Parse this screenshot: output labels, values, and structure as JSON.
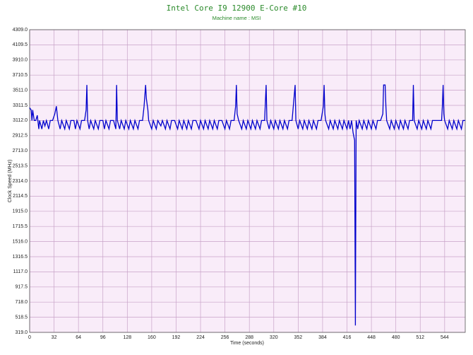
{
  "chart_data": {
    "type": "line",
    "title": "Intel Core I9 12900 E-Core #10",
    "subtitle": "Machine name : MSI",
    "x_label": "Time (seconds)",
    "y_label": "Clock Speed (MHz)",
    "grid": true,
    "xlim": [
      0,
      571
    ],
    "xticks": [
      0,
      32,
      64,
      96,
      128,
      160,
      192,
      224,
      256,
      288,
      320,
      352,
      384,
      416,
      448,
      480,
      512,
      544
    ],
    "ylim": [
      319,
      4309
    ],
    "yticks": [
      {
        "value": 319,
        "label": "319.0"
      },
      518.5,
      {
        "value": 718,
        "label": "718.0"
      },
      917.5,
      {
        "value": 1117,
        "label": "1117.0"
      },
      1316.5,
      {
        "value": 1516,
        "label": "1516.0"
      },
      1715.5,
      {
        "value": 1915,
        "label": "1915.0"
      },
      2114.5,
      {
        "value": 2314,
        "label": "2314.0"
      },
      2513.5,
      {
        "value": 2713,
        "label": "2713.0"
      },
      2912.5,
      {
        "value": 3112,
        "label": "3112.0"
      },
      3311.5,
      {
        "value": 3511,
        "label": "3511.0"
      },
      3710.5,
      {
        "value": 3910,
        "label": "3910.0"
      },
      4109.5,
      {
        "value": 4309,
        "label": "4309.0"
      }
    ],
    "x": [
      0,
      2,
      3,
      4,
      6,
      8,
      10,
      12,
      13,
      16,
      18,
      20,
      22,
      25,
      27,
      30,
      33,
      35,
      37,
      40,
      42,
      46,
      48,
      52,
      54,
      58,
      60,
      62,
      66,
      68,
      72,
      74,
      75,
      76,
      78,
      80,
      84,
      86,
      90,
      92,
      96,
      98,
      100,
      104,
      106,
      110,
      113,
      114,
      115,
      118,
      120,
      124,
      126,
      130,
      132,
      136,
      138,
      142,
      144,
      148,
      150,
      152,
      153,
      155,
      156,
      160,
      162,
      166,
      168,
      172,
      174,
      178,
      180,
      184,
      186,
      190,
      194,
      196,
      200,
      202,
      206,
      208,
      212,
      214,
      218,
      222,
      224,
      228,
      230,
      234,
      236,
      240,
      242,
      246,
      248,
      252,
      256,
      258,
      262,
      264,
      268,
      270,
      271,
      272,
      274,
      278,
      280,
      284,
      286,
      290,
      292,
      296,
      298,
      302,
      304,
      308,
      310,
      311,
      314,
      316,
      320,
      322,
      326,
      328,
      332,
      334,
      338,
      340,
      344,
      348,
      349,
      352,
      354,
      358,
      360,
      364,
      366,
      370,
      372,
      376,
      378,
      382,
      385,
      386,
      387,
      388,
      392,
      394,
      398,
      400,
      404,
      406,
      410,
      412,
      416,
      418,
      420,
      422,
      424,
      426,
      427,
      428,
      430,
      432,
      436,
      438,
      442,
      444,
      448,
      450,
      454,
      456,
      460,
      463,
      464,
      466,
      467,
      468,
      472,
      474,
      478,
      480,
      484,
      486,
      490,
      492,
      496,
      498,
      502,
      503,
      504,
      508,
      510,
      514,
      516,
      520,
      522,
      526,
      528,
      532,
      540,
      541,
      542,
      543,
      544,
      548,
      550,
      554,
      556,
      560,
      562,
      566,
      568,
      571
    ],
    "series": [
      {
        "name": "E-Core #10",
        "color": "#0000cc",
        "values": [
          3280,
          3250,
          3112,
          3250,
          3112,
          3112,
          3180,
          3000,
          3112,
          3000,
          3112,
          3040,
          3112,
          3000,
          3112,
          3112,
          3200,
          3300,
          3112,
          3000,
          3112,
          3000,
          3112,
          3000,
          3112,
          3112,
          3000,
          3112,
          3000,
          3112,
          3112,
          3250,
          3580,
          3112,
          3000,
          3112,
          3000,
          3112,
          3000,
          3112,
          3112,
          3000,
          3112,
          3000,
          3112,
          3112,
          3000,
          3580,
          3112,
          3000,
          3112,
          3000,
          3112,
          3000,
          3112,
          3000,
          3112,
          3000,
          3112,
          3112,
          3300,
          3580,
          3400,
          3250,
          3112,
          3000,
          3112,
          3000,
          3112,
          3040,
          3112,
          3000,
          3112,
          3000,
          3112,
          3112,
          3000,
          3112,
          3000,
          3112,
          3000,
          3112,
          3000,
          3112,
          3112,
          3000,
          3112,
          3000,
          3112,
          3000,
          3112,
          3000,
          3112,
          3000,
          3112,
          3112,
          3000,
          3112,
          3000,
          3112,
          3112,
          3300,
          3580,
          3200,
          3112,
          3000,
          3112,
          3000,
          3112,
          3000,
          3112,
          3000,
          3112,
          3000,
          3112,
          3112,
          3580,
          3112,
          3000,
          3112,
          3000,
          3112,
          3000,
          3112,
          3000,
          3112,
          3000,
          3112,
          3112,
          3580,
          3112,
          3000,
          3112,
          3000,
          3112,
          3000,
          3112,
          3000,
          3112,
          3000,
          3112,
          3112,
          3300,
          3580,
          3200,
          3112,
          3000,
          3112,
          3000,
          3112,
          3000,
          3112,
          3000,
          3112,
          3000,
          3112,
          3000,
          3112,
          2950,
          2850,
          410,
          3112,
          3000,
          3112,
          3000,
          3112,
          3000,
          3112,
          3000,
          3112,
          3000,
          3112,
          3112,
          3200,
          3580,
          3580,
          3300,
          3112,
          3000,
          3112,
          3000,
          3112,
          3000,
          3112,
          3000,
          3112,
          3000,
          3112,
          3112,
          3580,
          3112,
          3000,
          3112,
          3000,
          3112,
          3000,
          3112,
          3000,
          3112,
          3112,
          3112,
          3300,
          3580,
          3200,
          3112,
          3000,
          3112,
          3000,
          3112,
          3000,
          3112,
          3000,
          3112,
          3112
        ]
      }
    ]
  }
}
